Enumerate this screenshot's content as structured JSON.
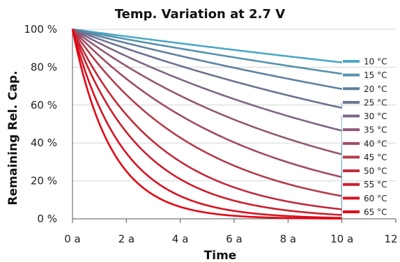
{
  "chart_data": {
    "type": "line",
    "title": "Temp. Variation at 2.7 V",
    "xlabel": "Time",
    "ylabel": "Remaining Rel. Cap.",
    "x_unit": "a",
    "y_unit": "%",
    "xlim": [
      0,
      12
    ],
    "ylim": [
      0,
      100
    ],
    "x_ticks": [
      0,
      2,
      4,
      6,
      8,
      10,
      12
    ],
    "y_ticks": [
      0,
      20,
      40,
      60,
      80,
      100
    ],
    "x_tick_labels": [
      "0 a",
      "2 a",
      "4 a",
      "6 a",
      "8 a",
      "10 a",
      "12 a"
    ],
    "y_tick_labels": [
      "0 %",
      "20 %",
      "40 %",
      "60 %",
      "80 %",
      "100 %"
    ],
    "grid": "horizontal",
    "legend_position": "right",
    "series": [
      {
        "name": "10 °C",
        "color": "#4ba8c4",
        "end_value": 82.5
      },
      {
        "name": "15 °C",
        "color": "#5592ad",
        "end_value": 76.5
      },
      {
        "name": "20 °C",
        "color": "#60819f",
        "end_value": 68.5
      },
      {
        "name": "25 °C",
        "color": "#6b7290",
        "end_value": 58.5
      },
      {
        "name": "30 °C",
        "color": "#7e6584",
        "end_value": 46.5
      },
      {
        "name": "35 °C",
        "color": "#925873",
        "end_value": 34.0
      },
      {
        "name": "40 °C",
        "color": "#a24a5f",
        "end_value": 22.0
      },
      {
        "name": "45 °C",
        "color": "#b23c4c",
        "end_value": 12.0
      },
      {
        "name": "50 °C",
        "color": "#c02b3a",
        "end_value": 5.0
      },
      {
        "name": "55 °C",
        "color": "#cc1d2b",
        "end_value": 2.0
      },
      {
        "name": "60 °C",
        "color": "#d8121f",
        "end_value": 0.5
      },
      {
        "name": "65 °C",
        "color": "#e30613",
        "end_value": 0.1
      }
    ]
  }
}
